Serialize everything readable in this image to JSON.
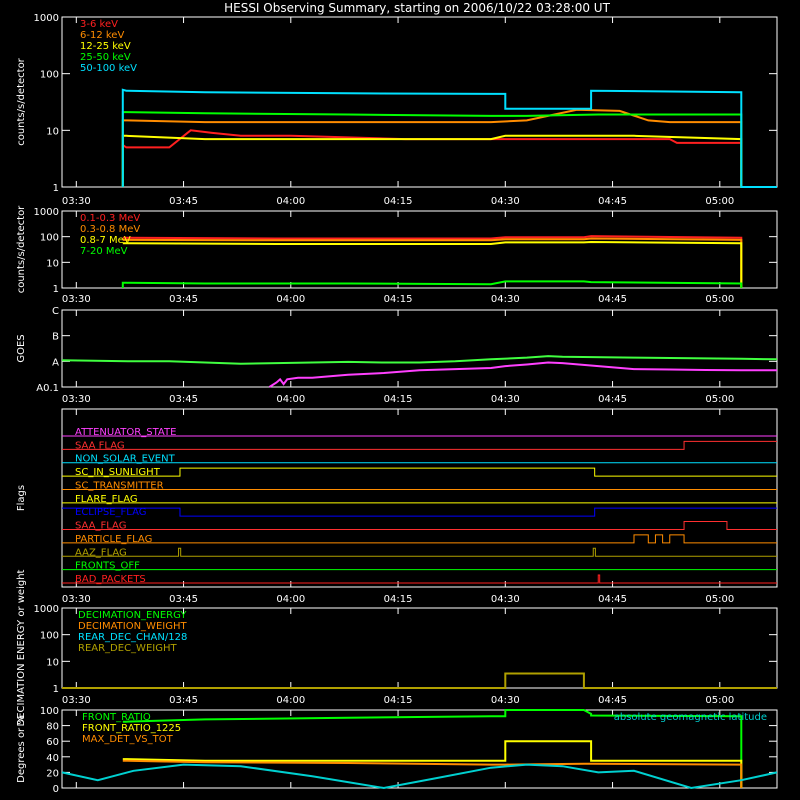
{
  "figure": {
    "title": "HESSI Observing Summary, starting on 2006/10/22 03:28:00 UT",
    "time_ticks": [
      "03:30",
      "03:45",
      "04:00",
      "04:15",
      "04:30",
      "04:45",
      "05:00"
    ]
  },
  "chart_data": [
    {
      "id": "lo",
      "type": "line",
      "ylabel": "counts/s/detector",
      "yscale": "log",
      "ylim": [
        1,
        1000
      ],
      "y_ticks": [
        "1",
        "10",
        "100",
        "1000"
      ],
      "time_range_min": [
        0,
        100
      ],
      "series": [
        {
          "name": "3-6 keV",
          "color": "#ff2020",
          "x": [
            8.5,
            8.5,
            9,
            15,
            18,
            21,
            25,
            32,
            40,
            48,
            55,
            60,
            65,
            72,
            78,
            82,
            85,
            86,
            95,
            95,
            100
          ],
          "y": [
            1,
            5.5,
            5,
            5,
            10,
            9,
            8,
            8,
            7.5,
            7,
            7,
            7,
            7,
            7,
            7,
            7,
            7,
            6,
            6,
            1,
            1
          ]
        },
        {
          "name": "6-12 keV",
          "color": "#ff8c00",
          "x": [
            8.5,
            8.5,
            9,
            20,
            40,
            60,
            65,
            72,
            78,
            82,
            85,
            95,
            95,
            100
          ],
          "y": [
            1,
            15,
            15,
            14,
            14,
            14,
            15,
            23,
            22,
            15,
            14,
            14,
            1,
            1
          ]
        },
        {
          "name": "12-25 keV",
          "color": "#ffff00",
          "x": [
            8.5,
            8.5,
            9,
            20,
            40,
            55,
            60,
            62,
            70,
            80,
            95,
            95,
            100
          ],
          "y": [
            1,
            8,
            8,
            7,
            7,
            7,
            7,
            8,
            8,
            8,
            7,
            1,
            1
          ]
        },
        {
          "name": "25-50 keV",
          "color": "#00ff00",
          "x": [
            8.5,
            8.5,
            9,
            20,
            40,
            60,
            65,
            75,
            80,
            95,
            95,
            100
          ],
          "y": [
            1,
            21,
            21,
            20,
            19,
            18,
            18,
            19,
            19,
            19,
            1,
            1
          ]
        },
        {
          "name": "50-100 keV",
          "color": "#00e0ff",
          "x": [
            8.5,
            8.5,
            9,
            20,
            40,
            60,
            62,
            62,
            73,
            74,
            74,
            95,
            95,
            100
          ],
          "y": [
            1,
            52,
            50,
            47,
            45,
            44,
            44,
            24,
            24,
            24,
            50,
            47,
            1,
            1
          ]
        }
      ]
    },
    {
      "id": "hi",
      "type": "line",
      "ylabel": "counts/s/detector",
      "yscale": "log",
      "ylim": [
        1,
        1000
      ],
      "y_ticks": [
        "1",
        "10",
        "100",
        "1000"
      ],
      "time_range_min": [
        0,
        100
      ],
      "series": [
        {
          "name": "0.1-0.3 MeV",
          "color": "#ff2020",
          "x": [
            8.5,
            9,
            30,
            60,
            62,
            73,
            74,
            95,
            95
          ],
          "y": [
            90,
            90,
            85,
            85,
            95,
            95,
            105,
            90,
            1
          ]
        },
        {
          "name": "0.3-0.8 MeV",
          "color": "#ff8c00",
          "x": [
            8.5,
            9,
            30,
            60,
            62,
            73,
            74,
            95,
            95
          ],
          "y": [
            75,
            75,
            72,
            72,
            80,
            80,
            85,
            75,
            1
          ]
        },
        {
          "name": "0.8-7 MeV",
          "color": "#ffff00",
          "x": [
            8.5,
            9,
            30,
            60,
            62,
            73,
            74,
            95,
            95
          ],
          "y": [
            55,
            55,
            52,
            52,
            60,
            60,
            62,
            55,
            1
          ]
        },
        {
          "name": "7-20 MeV",
          "color": "#00ff00",
          "x": [
            8.5,
            8.5,
            9,
            20,
            40,
            60,
            62,
            73,
            74,
            95,
            95
          ],
          "y": [
            1,
            1.6,
            1.6,
            1.5,
            1.5,
            1.4,
            1.8,
            1.8,
            1.7,
            1.5,
            1
          ]
        }
      ]
    },
    {
      "id": "goes",
      "type": "line",
      "ylabel": "GOES",
      "yscale": "log",
      "ylim": [
        1e-08,
        1e-05
      ],
      "y_ticks": [
        "A0.1",
        "A",
        "B",
        "C"
      ],
      "time_range_min": [
        0,
        100
      ],
      "series": [
        {
          "name": "",
          "color": "#40ff40",
          "x": [
            0,
            10,
            15,
            25,
            30,
            40,
            45,
            50,
            55,
            60,
            65,
            68,
            70,
            80,
            90,
            95,
            100
          ],
          "y": [
            1.1e-07,
            1e-07,
            1e-07,
            8e-08,
            8.5e-08,
            9.5e-08,
            9e-08,
            9e-08,
            1e-07,
            1.2e-07,
            1.4e-07,
            1.6e-07,
            1.5e-07,
            1.4e-07,
            1.3e-07,
            1.25e-07,
            1.2e-07
          ]
        },
        {
          "name": "",
          "color": "#ff40ff",
          "x": [
            29,
            30,
            30.5,
            31,
            31.5,
            33,
            35,
            40,
            45,
            50,
            55,
            60,
            62,
            65,
            68,
            70,
            75,
            80,
            85,
            90,
            95,
            100
          ],
          "y": [
            1e-08,
            1.5e-08,
            2e-08,
            1.3e-08,
            2e-08,
            2.3e-08,
            2.3e-08,
            3e-08,
            3.5e-08,
            4.5e-08,
            5e-08,
            5.5e-08,
            6.5e-08,
            7.5e-08,
            9e-08,
            8.5e-08,
            6.5e-08,
            5e-08,
            4.8e-08,
            4.6e-08,
            4.5e-08,
            4.5e-08
          ]
        }
      ]
    },
    {
      "id": "flags",
      "type": "line",
      "ylabel": "Flags",
      "time_range_min": [
        0,
        100
      ],
      "flags": [
        {
          "name": "ATTENUATOR_STATE",
          "color": "#ff40ff",
          "steps": [
            [
              0,
              0
            ]
          ]
        },
        {
          "name": "SAA FLAG",
          "color": "#ff3030",
          "steps": [
            [
              0,
              0
            ],
            [
              87,
              1
            ]
          ]
        },
        {
          "name": "NON_SOLAR_EVENT",
          "color": "#00e0ff",
          "steps": [
            [
              0,
              0
            ]
          ]
        },
        {
          "name": "SC_IN_SUNLIGHT",
          "color": "#ffff00",
          "steps": [
            [
              0,
              0
            ],
            [
              16.5,
              1
            ],
            [
              74.5,
              0
            ]
          ]
        },
        {
          "name": "SC_TRANSMITTER",
          "color": "#ff8c00",
          "steps": [
            [
              0,
              0
            ]
          ]
        },
        {
          "name": "FLARE_FLAG",
          "color": "#ffff00",
          "steps": [
            [
              0,
              0
            ]
          ]
        },
        {
          "name": "ECLIPSE_FLAG",
          "color": "#0000ff",
          "steps": [
            [
              0,
              1
            ],
            [
              16.5,
              0
            ],
            [
              74.5,
              1
            ]
          ]
        },
        {
          "name": "SAA_FLAG",
          "color": "#ff3030",
          "steps": [
            [
              0,
              0
            ],
            [
              87,
              1
            ],
            [
              93,
              0
            ]
          ]
        },
        {
          "name": "PARTICLE_FLAG",
          "color": "#ff8c00",
          "steps": [
            [
              0,
              0
            ],
            [
              80,
              1
            ],
            [
              82,
              0
            ],
            [
              83,
              1
            ],
            [
              84,
              0
            ],
            [
              85,
              1
            ],
            [
              87,
              0
            ]
          ]
        },
        {
          "name": "AAZ_FLAG",
          "color": "#b0a000",
          "steps": [
            [
              0,
              0
            ],
            [
              16.3,
              1
            ],
            [
              16.6,
              0
            ],
            [
              74.3,
              1
            ],
            [
              74.6,
              0
            ]
          ]
        },
        {
          "name": "FRONTS_OFF",
          "color": "#00ff00",
          "steps": [
            [
              0,
              0
            ]
          ]
        },
        {
          "name": "BAD_PACKETS",
          "color": "#ff2020",
          "steps": [
            [
              0,
              0
            ],
            [
              75,
              1
            ],
            [
              75.2,
              0
            ]
          ]
        }
      ]
    },
    {
      "id": "decim",
      "type": "line",
      "ylabel": "DECIMATION ENERGY or weight",
      "yscale": "log",
      "ylim": [
        1,
        1000
      ],
      "y_ticks": [
        "1",
        "10",
        "100",
        "1000"
      ],
      "time_range_min": [
        0,
        100
      ],
      "series": [
        {
          "name": "DECIMATION_ENERGY",
          "color": "#00ff00",
          "x": [],
          "y": []
        },
        {
          "name": "DECIMATION_WEIGHT",
          "color": "#ff8c00",
          "x": [],
          "y": []
        },
        {
          "name": "REAR_DEC_CHAN/128",
          "color": "#00e0ff",
          "x": [],
          "y": []
        },
        {
          "name": "REAR_DEC_WEIGHT",
          "color": "#b0a000",
          "x": [
            0,
            62,
            62,
            73,
            73,
            100
          ],
          "y": [
            1,
            1,
            3.5,
            3.5,
            1,
            1
          ]
        }
      ]
    },
    {
      "id": "ratio",
      "type": "line",
      "ylabel": "Degrees or %",
      "ylim": [
        0,
        100
      ],
      "y_ticks": [
        "0",
        "20",
        "40",
        "60",
        "80",
        "100"
      ],
      "time_range_min": [
        0,
        100
      ],
      "right_label": "absolute geomagnetic latitude",
      "series": [
        {
          "name": "FRONT_RATIO",
          "color": "#00ff00",
          "x": [
            8.5,
            9,
            20,
            40,
            60,
            62,
            62,
            73,
            74,
            74,
            95,
            95
          ],
          "y": [
            85,
            85,
            88,
            90,
            92,
            92,
            100,
            100,
            95,
            93,
            92,
            0
          ]
        },
        {
          "name": "FRONT_RATIO_1225",
          "color": "#ffff00",
          "x": [
            8.5,
            9,
            20,
            40,
            60,
            62,
            62,
            73,
            74,
            74,
            95,
            95
          ],
          "y": [
            37,
            37,
            35,
            35,
            35,
            35,
            60,
            60,
            60,
            35,
            35,
            0
          ]
        },
        {
          "name": "MAX_DET_VS_TOT",
          "color": "#ff8c00",
          "x": [
            8.5,
            9,
            20,
            40,
            60,
            62,
            73,
            74,
            95,
            95
          ],
          "y": [
            35,
            35,
            33,
            32,
            30,
            30,
            31,
            31,
            30,
            0
          ]
        },
        {
          "name": "",
          "color": "#00d0d0",
          "x": [
            0,
            5,
            10,
            17,
            25,
            35,
            45,
            52,
            60,
            65,
            70,
            75,
            80,
            88,
            95,
            100
          ],
          "y": [
            20,
            10,
            22,
            30,
            28,
            15,
            0,
            12,
            26,
            30,
            28,
            20,
            22,
            0,
            10,
            20
          ]
        }
      ]
    }
  ]
}
